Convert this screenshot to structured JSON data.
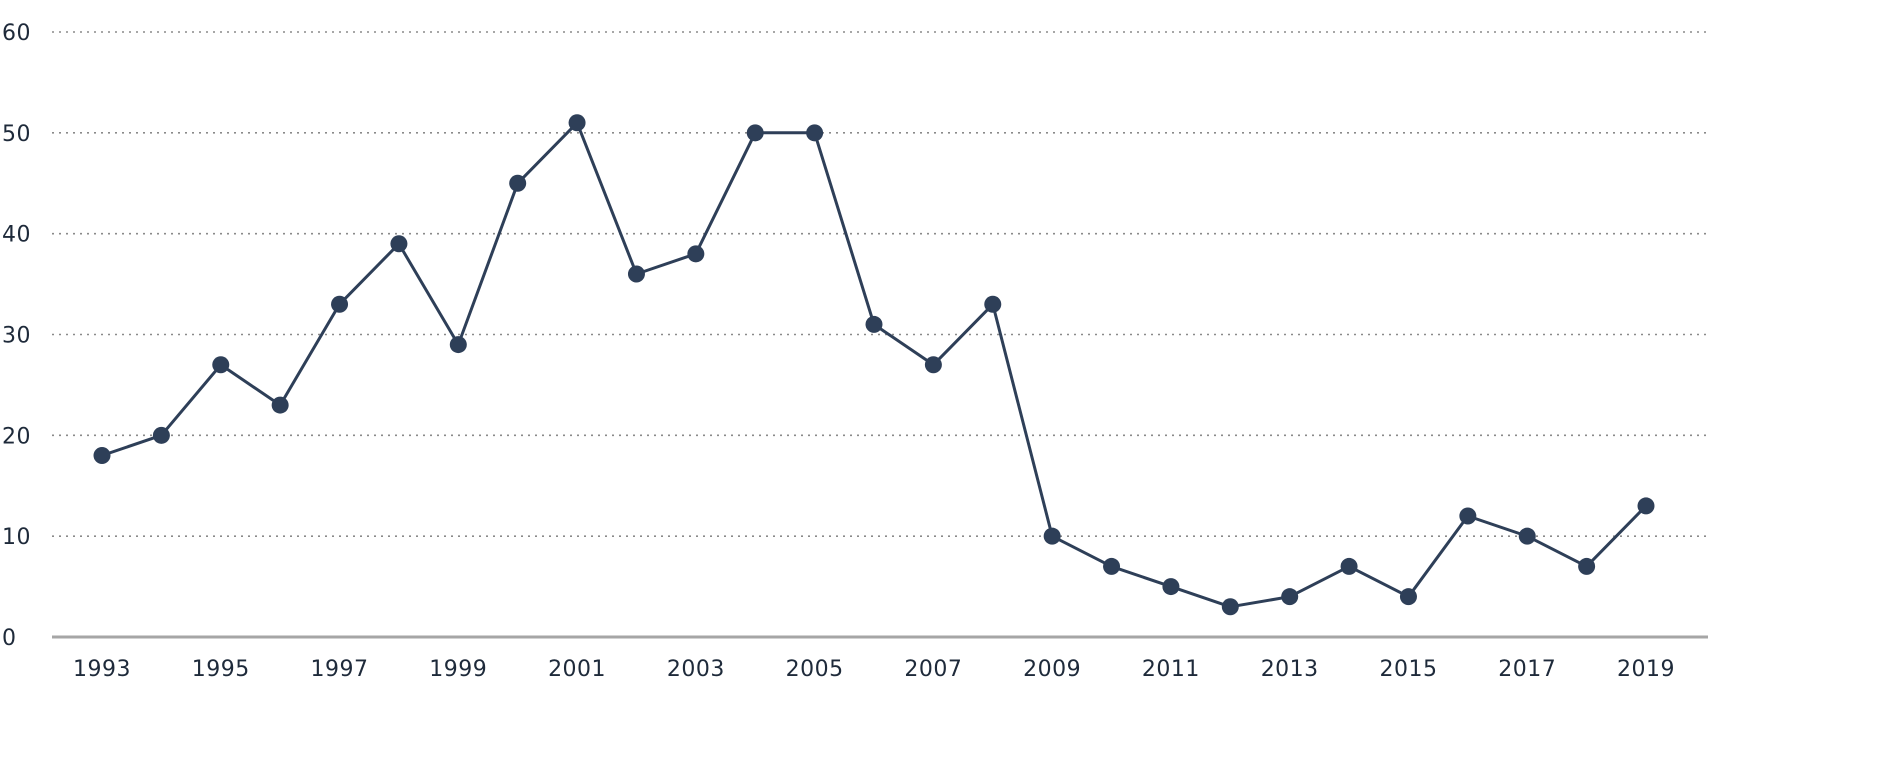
{
  "chart_data": {
    "type": "line",
    "title": "",
    "xlabel": "",
    "ylabel": "",
    "ylim": [
      0,
      60
    ],
    "yticks": [
      "0",
      "10",
      "20",
      "30",
      "40",
      "50",
      "60"
    ],
    "xticks": [
      "1993",
      "1995",
      "1997",
      "1999",
      "2001",
      "2003",
      "2005",
      "2007",
      "2009",
      "2011",
      "2013",
      "2015",
      "2017",
      "2019"
    ],
    "grid": "horizontal dotted",
    "legend": "none",
    "x": [
      1993,
      1994,
      1995,
      1996,
      1997,
      1998,
      1999,
      2000,
      2001,
      2002,
      2003,
      2004,
      2005,
      2006,
      2007,
      2008,
      2009,
      2010,
      2011,
      2012,
      2013,
      2014,
      2015,
      2016,
      2017,
      2018,
      2019
    ],
    "series": [
      {
        "values": [
          18,
          20,
          27,
          23,
          33,
          39,
          29,
          45,
          51,
          36,
          38,
          50,
          50,
          31,
          27,
          33,
          10,
          7,
          5,
          3,
          4,
          7,
          4,
          12,
          10,
          7,
          13
        ],
        "color": "#2e3f58"
      }
    ],
    "colors": {
      "line": "#2e3f58",
      "grid": "#8a8a8a",
      "baseline": "#a6a6a6",
      "text": "#1e2a3a"
    }
  }
}
